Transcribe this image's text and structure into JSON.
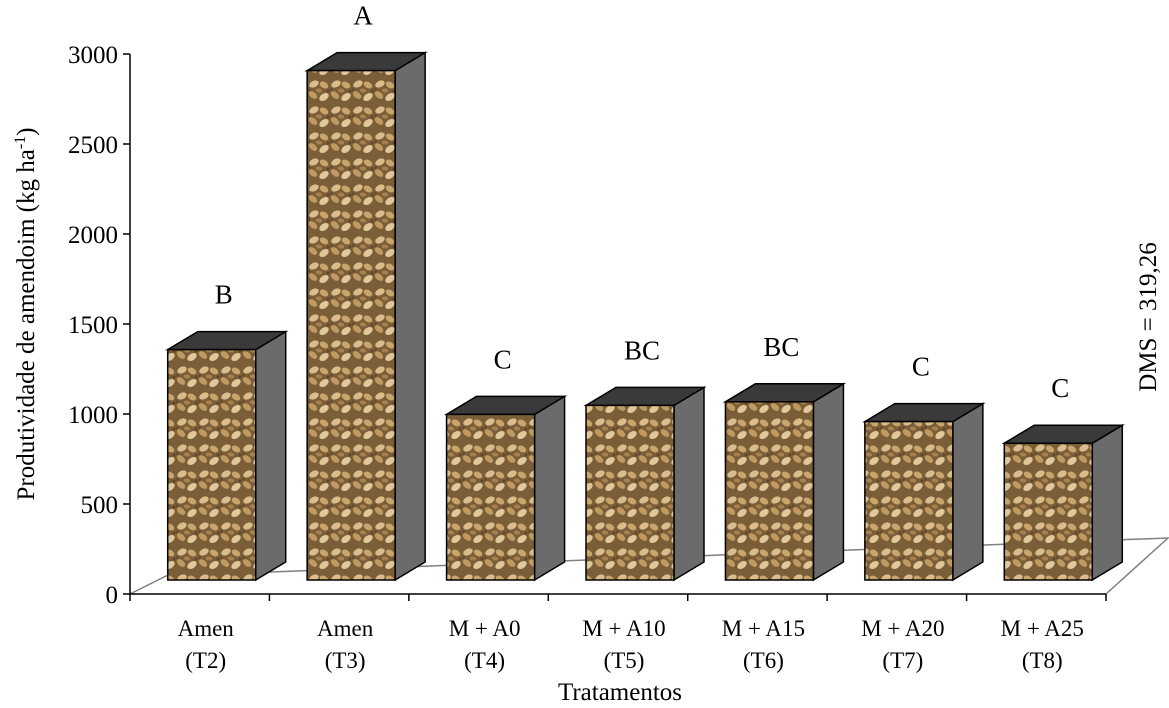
{
  "chart_data": {
    "type": "bar",
    "style": "3d-column",
    "xlabel": "Tratamentos",
    "ylabel_main": "Produtividade de amendoim (kg ha",
    "ylabel_sup": "-1",
    "ylabel_tail": ")",
    "ylim": [
      0,
      3000
    ],
    "yticks": [
      "0",
      "500",
      "1000",
      "1500",
      "2000",
      "2500",
      "3000"
    ],
    "categories": [
      {
        "line1": "Amen",
        "line2": "(T2)"
      },
      {
        "line1": "Amen",
        "line2": "(T3)"
      },
      {
        "line1": "M + A0",
        "line2": "(T4)"
      },
      {
        "line1": "M + A10",
        "line2": "(T5)"
      },
      {
        "line1": "M + A15",
        "line2": "(T6)"
      },
      {
        "line1": "M + A20",
        "line2": "(T7)"
      },
      {
        "line1": "M + A25",
        "line2": "(T8)"
      }
    ],
    "values": [
      1280,
      2830,
      920,
      970,
      990,
      880,
      760
    ],
    "letters": [
      "B",
      "A",
      "C",
      "BC",
      "BC",
      "C",
      "C"
    ],
    "annotation": "DMS = 319,26",
    "colors": {
      "bar_texture": "#b8935c",
      "bar_side": "#6b6b6b",
      "bar_top": "#3a3a3a",
      "axis": "#000000"
    }
  }
}
